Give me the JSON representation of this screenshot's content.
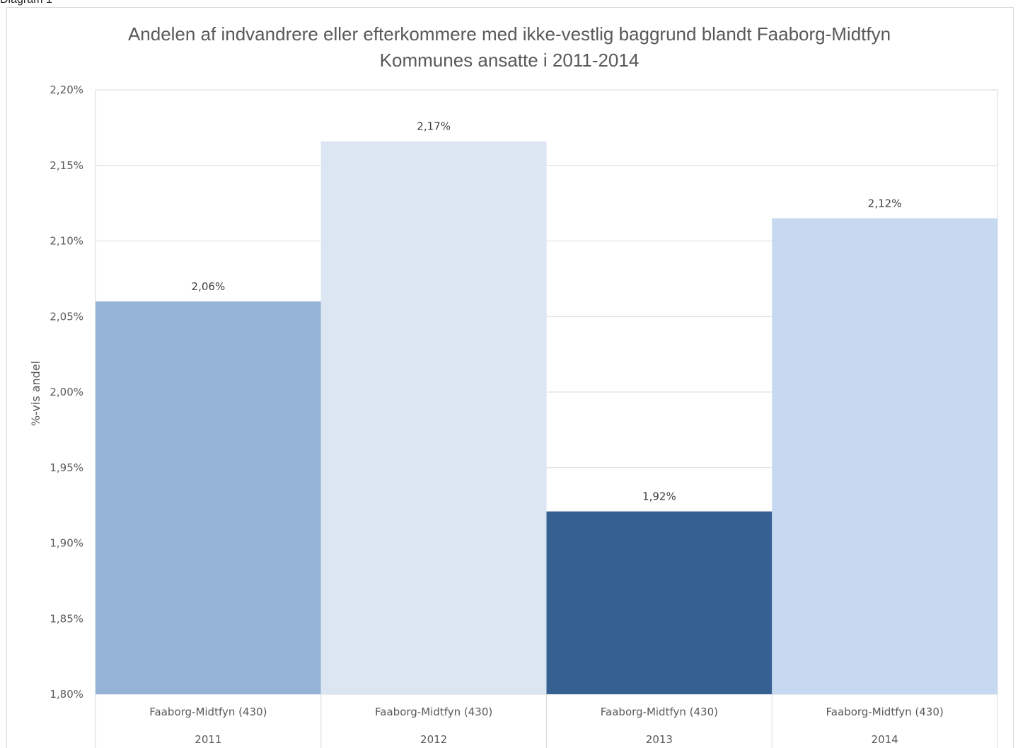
{
  "caption": "Diagram 1",
  "chart_data": {
    "type": "bar",
    "title": "Andelen af indvandrere eller efterkommere med ikke-vestlig baggrund blandt Faaborg-Midtfyn Kommunes ansatte i 2011-2014",
    "ylabel": "%-vis andel",
    "xlabel": "",
    "ylim": [
      1.8,
      2.2
    ],
    "yticks": [
      "1,80%",
      "1,85%",
      "1,90%",
      "1,95%",
      "2,00%",
      "2,05%",
      "2,10%",
      "2,15%",
      "2,20%"
    ],
    "ytick_values": [
      1.8,
      1.85,
      1.9,
      1.95,
      2.0,
      2.05,
      2.1,
      2.15,
      2.2
    ],
    "grid": true,
    "categories": [
      {
        "group": "Faaborg-Midtfyn (430)",
        "year": "2011"
      },
      {
        "group": "Faaborg-Midtfyn (430)",
        "year": "2012"
      },
      {
        "group": "Faaborg-Midtfyn (430)",
        "year": "2013"
      },
      {
        "group": "Faaborg-Midtfyn (430)",
        "year": "2014"
      }
    ],
    "values": [
      2.06,
      2.166,
      1.921,
      2.115
    ],
    "data_labels": [
      "2,06%",
      "2,17%",
      "1,92%",
      "2,12%"
    ],
    "colors": [
      "#95b3d7",
      "#dce6f2",
      "#366092",
      "#c6d9f1"
    ]
  }
}
